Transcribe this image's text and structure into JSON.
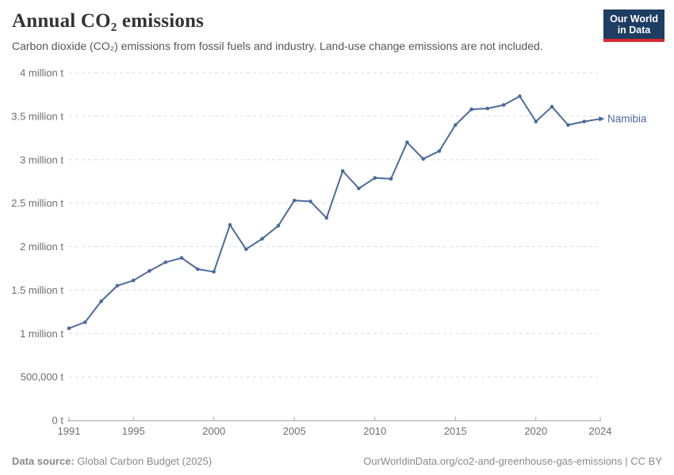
{
  "header": {
    "title": "Annual CO₂ emissions",
    "subtitle": "Carbon dioxide (CO₂) emissions from fossil fuels and industry. Land-use change emissions are not included.",
    "logo": {
      "line1": "Our World",
      "line2": "in Data"
    }
  },
  "footer": {
    "datasource_label": "Data source:",
    "datasource_value": "Global Carbon Budget (2025)",
    "attribution": "OurWorldinData.org/co2-and-greenhouse-gas-emissions | CC BY"
  },
  "colors": {
    "line": "#4c6a9c",
    "logo_bg": "#1d3d63",
    "logo_stripe": "#d7282f",
    "gridline": "#dddddd",
    "axis_text": "#6e6e6e"
  },
  "chart_data": {
    "type": "line",
    "title": "Annual CO₂ emissions",
    "entity": "Namibia",
    "unit": "t",
    "xlabel": "",
    "ylabel": "",
    "grid": "horizontal-dashed",
    "legend_position": "end-of-line-label",
    "xlim": [
      1991,
      2024
    ],
    "ylim": [
      0,
      4000000
    ],
    "x": [
      1991,
      1992,
      1993,
      1994,
      1995,
      1996,
      1997,
      1998,
      1999,
      2000,
      2001,
      2002,
      2003,
      2004,
      2005,
      2006,
      2007,
      2008,
      2009,
      2010,
      2011,
      2012,
      2013,
      2014,
      2015,
      2016,
      2017,
      2018,
      2019,
      2020,
      2021,
      2022,
      2023,
      2024
    ],
    "series": [
      {
        "name": "Namibia",
        "values": [
          1060000,
          1130000,
          1370000,
          1550000,
          1610000,
          1720000,
          1820000,
          1870000,
          1740000,
          1710000,
          2250000,
          1970000,
          2090000,
          2240000,
          2530000,
          2520000,
          2330000,
          2870000,
          2670000,
          2790000,
          2780000,
          3200000,
          3010000,
          3100000,
          3400000,
          3580000,
          3590000,
          3630000,
          3730000,
          3440000,
          3610000,
          3400000,
          3440000,
          3470000
        ]
      }
    ],
    "x_ticks": [
      1991,
      1995,
      2000,
      2005,
      2010,
      2015,
      2020,
      2024
    ],
    "y_ticks": [
      {
        "value": 0,
        "label": "0 t"
      },
      {
        "value": 500000,
        "label": "500,000 t"
      },
      {
        "value": 1000000,
        "label": "1 million t"
      },
      {
        "value": 1500000,
        "label": "1.5 million t"
      },
      {
        "value": 2000000,
        "label": "2 million t"
      },
      {
        "value": 2500000,
        "label": "2.5 million t"
      },
      {
        "value": 3000000,
        "label": "3 million t"
      },
      {
        "value": 3500000,
        "label": "3.5 million t"
      },
      {
        "value": 4000000,
        "label": "4 million t"
      }
    ]
  }
}
